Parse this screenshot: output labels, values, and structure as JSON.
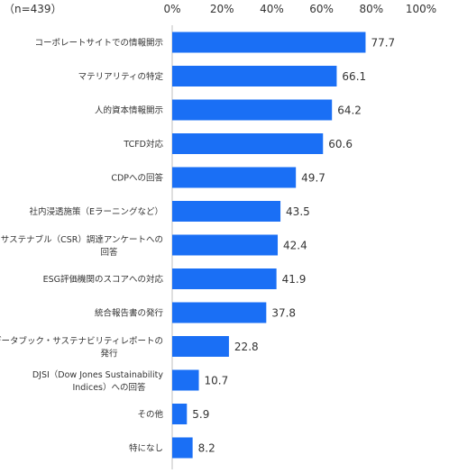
{
  "chart_data": {
    "type": "bar",
    "orientation": "horizontal",
    "sample_note": "（n=439）",
    "categories": [
      [
        "コーポレートサイトでの情報開示"
      ],
      [
        "マテリアリティの特定"
      ],
      [
        "人的資本情報開示"
      ],
      [
        "TCFD対応"
      ],
      [
        "CDPへの回答"
      ],
      [
        "社内浸透施策（Eラーニングなど）"
      ],
      [
        "サステナブル（CSR）調達アンケートへの",
        "回答"
      ],
      [
        "ESG評価機関のスコアへの対応"
      ],
      [
        "統合報告書の発行"
      ],
      [
        "ESGデータブック・サステナビリティレポートの",
        "発行"
      ],
      [
        "DJSI（Dow Jones Sustainability",
        "Indices）への回答"
      ],
      [
        "その他"
      ],
      [
        "特になし"
      ]
    ],
    "values": [
      77.7,
      66.1,
      64.2,
      60.6,
      49.7,
      43.5,
      42.4,
      41.9,
      37.8,
      22.8,
      10.7,
      5.9,
      8.2
    ],
    "value_labels": [
      "77.7",
      "66.1",
      "64.2",
      "60.6",
      "49.7",
      "43.5",
      "42.4",
      "41.9",
      "37.8",
      "22.8",
      "10.7",
      "5.9",
      "8.2"
    ],
    "x_ticks": [
      0,
      20,
      40,
      60,
      80,
      100
    ],
    "x_tick_labels": [
      "0%",
      "20%",
      "40%",
      "60%",
      "80%",
      "100%"
    ],
    "xlim": [
      0,
      100
    ],
    "grid": false,
    "legend": "none",
    "bar_color": "#1a6ff5"
  }
}
